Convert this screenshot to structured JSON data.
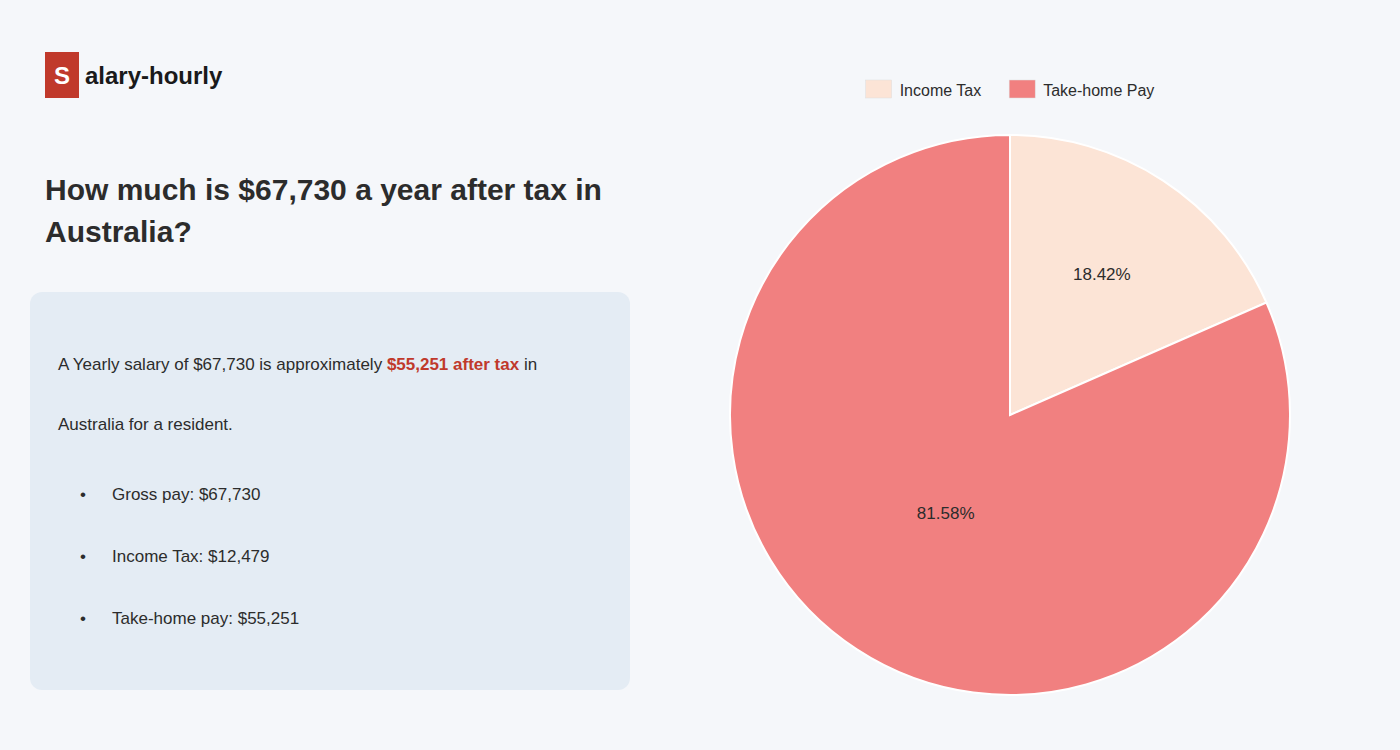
{
  "chart_data": {
    "type": "pie",
    "title": "How much is $67,730 a year after tax in\nAustralia?",
    "categories": [
      "Income Tax",
      "Take-home Pay"
    ],
    "values": [
      18.42,
      81.58
    ],
    "value_labels": [
      "18.42%",
      "81.58%"
    ],
    "colors": [
      "#fce4d6",
      "#f18080"
    ],
    "data_labels": true,
    "legend": "top",
    "annotations": [
      [
        {
          "text": "S",
          "color": "#c0392b"
        },
        {
          "text": "alary-hourly"
        }
      ],
      [
        {
          "text": "A Yearly salary of $67,730 is approximately "
        },
        {
          "text": "$55,251 after tax",
          "color": "#c0392b"
        },
        {
          "text": " in"
        }
      ],
      [
        {
          "text": "Australia for a resident."
        }
      ],
      [
        {
          "text": "•"
        },
        {
          "text": "Gross pay: $67,730"
        }
      ],
      [
        {
          "text": "•"
        },
        {
          "text": "Income Tax: $12,479"
        }
      ],
      [
        {
          "text": "•"
        },
        {
          "text": "Take-home pay: $55,251"
        }
      ]
    ]
  }
}
